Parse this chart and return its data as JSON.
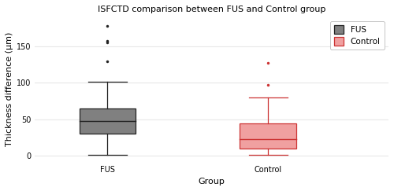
{
  "title": "ISFCTD comparison between FUS and Control group",
  "xlabel": "Group",
  "ylabel": "Thickness difference (μm)",
  "ylim": [
    -8,
    190
  ],
  "yticks": [
    0,
    50,
    100,
    150
  ],
  "groups": [
    "FUS",
    "Control"
  ],
  "fus_stats": {
    "whislo": 1,
    "q1": 30,
    "med": 48,
    "q3": 65,
    "whishi": 102,
    "fliers": [
      130,
      155,
      158,
      178
    ]
  },
  "control_stats": {
    "whislo": 1,
    "q1": 10,
    "med": 23,
    "q3": 44,
    "whishi": 80,
    "fliers": [
      97,
      127
    ]
  },
  "fus_color": "#808080",
  "fus_edge_color": "#222222",
  "control_color": "#f0a0a0",
  "control_edge_color": "#cc3333",
  "background_color": "#ffffff",
  "grid_color": "#e8e8e8",
  "title_fontsize": 8,
  "axis_label_fontsize": 8,
  "tick_fontsize": 7,
  "legend_fontsize": 7.5
}
